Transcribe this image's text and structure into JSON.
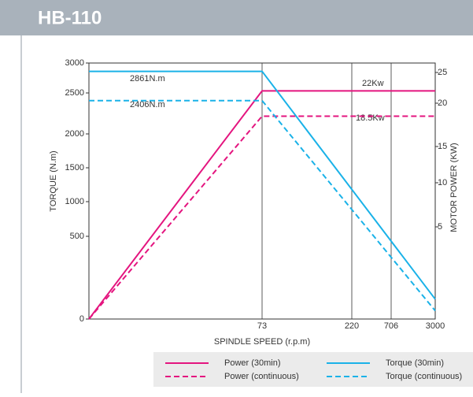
{
  "header": {
    "title": "HB-110"
  },
  "chart_data": {
    "type": "line",
    "xlabel": "SPINDLE SPEED (r.p.m)",
    "ylabel": "TORQUE (N.m)",
    "y2label": "MOTOR POWER (KW)",
    "x": [
      0,
      73,
      3000
    ],
    "xlim": [
      0,
      3000
    ],
    "xticks": [
      73,
      220,
      706,
      3000
    ],
    "ylim": [
      0,
      3000
    ],
    "yticks": [
      0,
      500,
      1000,
      1500,
      2000,
      2500,
      3000
    ],
    "y2lim": [
      0,
      25
    ],
    "y2ticks": [
      5,
      10,
      15,
      20,
      25
    ],
    "series": [
      {
        "name": "Power (30min)",
        "color": "#e4157f",
        "axis": "y2",
        "dashed": false,
        "values": [
          0,
          22,
          22
        ]
      },
      {
        "name": "Power (continuous)",
        "color": "#e4157f",
        "axis": "y2",
        "dashed": true,
        "values": [
          0,
          18.5,
          18.5
        ]
      },
      {
        "name": "Torque (30min)",
        "color": "#1ab2e8",
        "dashed": false,
        "values": [
          2861,
          2861,
          120
        ]
      },
      {
        "name": "Torque (continuous)",
        "color": "#1ab2e8",
        "dashed": true,
        "values": [
          2406,
          2406,
          50
        ]
      }
    ],
    "annotations": [
      "2861N.m",
      "2406N.m",
      "22Kw",
      "18.5Kw"
    ]
  }
}
